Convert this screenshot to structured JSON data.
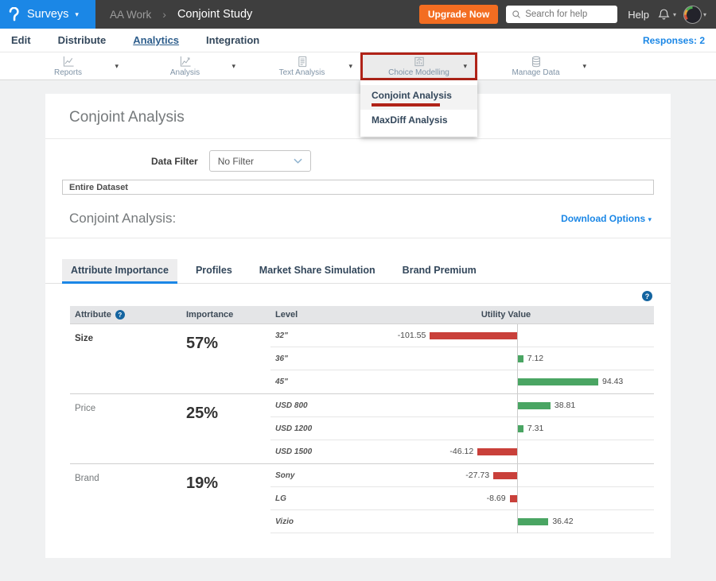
{
  "topbar": {
    "product": "Surveys",
    "workspace": "AA Work",
    "survey_title": "Conjoint Study",
    "upgrade_label": "Upgrade Now",
    "search_placeholder": "Search for help",
    "help_label": "Help"
  },
  "nav": {
    "items": [
      "Edit",
      "Distribute",
      "Analytics",
      "Integration"
    ],
    "active_item": "Analytics",
    "responses_label": "Responses: 2"
  },
  "toolbar": {
    "items": [
      {
        "label": "Reports",
        "icon": "reports-chart-icon",
        "highlighted": false,
        "open": false
      },
      {
        "label": "Analysis",
        "icon": "analysis-chart-icon",
        "highlighted": false,
        "open": false
      },
      {
        "label": "Text Analysis",
        "icon": "text-analysis-icon",
        "highlighted": false,
        "open": false
      },
      {
        "label": "Choice Modelling",
        "icon": "choice-modelling-icon",
        "highlighted": true,
        "open": true
      },
      {
        "label": "Manage Data",
        "icon": "database-icon",
        "highlighted": false,
        "open": false
      }
    ]
  },
  "choice_modelling_menu": {
    "items": [
      {
        "label": "Conjoint Analysis",
        "active": true,
        "annotated": true
      },
      {
        "label": "MaxDiff Analysis",
        "active": false,
        "annotated": false
      }
    ]
  },
  "main": {
    "page_title": "Conjoint Analysis",
    "data_filter_label": "Data Filter",
    "data_filter_value": "No Filter",
    "dataset_banner": "Entire Dataset",
    "section_heading": "Conjoint Analysis:",
    "download_options_label": "Download Options",
    "tabs": [
      "Attribute Importance",
      "Profiles",
      "Market Share Simulation",
      "Brand Premium"
    ],
    "active_tab": "Attribute Importance"
  },
  "chart_data": {
    "type": "bar",
    "orientation": "horizontal-diverging",
    "title": "Utility Value",
    "groups": [
      {
        "attribute": "Size",
        "importance_pct": 57,
        "levels": [
          "32\"",
          "36\"",
          "45\""
        ],
        "values": [
          -101.55,
          7.12,
          94.43
        ]
      },
      {
        "attribute": "Price",
        "importance_pct": 25,
        "levels": [
          "USD 800",
          "USD 1200",
          "USD 1500"
        ],
        "values": [
          38.81,
          7.31,
          -46.12
        ]
      },
      {
        "attribute": "Brand",
        "importance_pct": 19,
        "levels": [
          "Sony",
          "LG",
          "Vizio"
        ],
        "values": [
          -27.73,
          -8.69,
          36.42
        ]
      }
    ]
  },
  "conjoint_table": {
    "headers": [
      "Attribute",
      "Importance",
      "Level",
      "Utility Value"
    ],
    "groups": [
      {
        "attribute": "Size",
        "importance": "57%",
        "emphasized": true,
        "levels": [
          {
            "label": "32\"",
            "value": -101.55,
            "display": "-101.55"
          },
          {
            "label": "36\"",
            "value": 7.12,
            "display": "7.12"
          },
          {
            "label": "45\"",
            "value": 94.43,
            "display": "94.43"
          }
        ]
      },
      {
        "attribute": "Price",
        "importance": "25%",
        "emphasized": false,
        "levels": [
          {
            "label": "USD 800",
            "value": 38.81,
            "display": "38.81"
          },
          {
            "label": "USD 1200",
            "value": 7.31,
            "display": "7.31"
          },
          {
            "label": "USD 1500",
            "value": -46.12,
            "display": "-46.12"
          }
        ]
      },
      {
        "attribute": "Brand",
        "importance": "19%",
        "emphasized": false,
        "levels": [
          {
            "label": "Sony",
            "value": -27.73,
            "display": "-27.73"
          },
          {
            "label": "LG",
            "value": -8.69,
            "display": "-8.69"
          },
          {
            "label": "Vizio",
            "value": 36.42,
            "display": "36.42"
          }
        ]
      }
    ]
  },
  "colors": {
    "accent_blue": "#1b87e6",
    "positive_bar": "#4aa563",
    "negative_bar": "#c9403a",
    "annotation_red": "#b02318",
    "upgrade_orange": "#f36d21",
    "help_icon_blue": "#1464a0"
  }
}
